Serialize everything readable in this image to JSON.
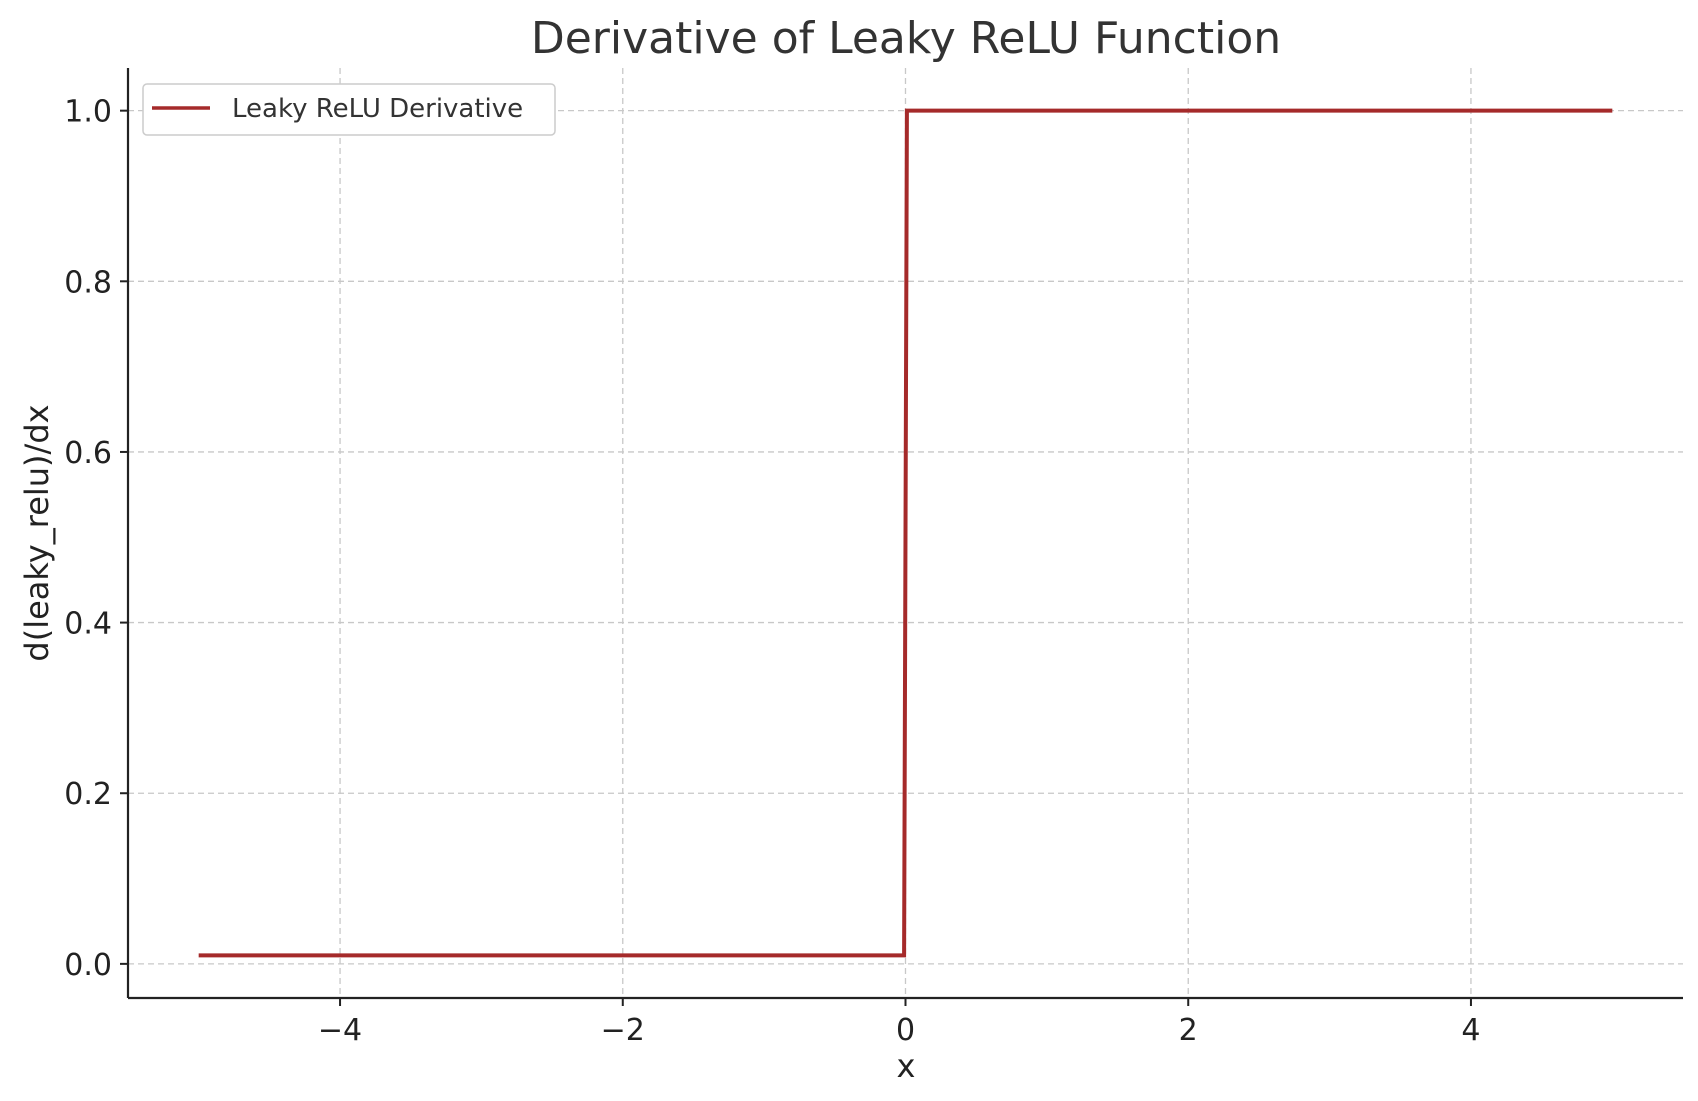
{
  "chart_data": {
    "type": "line",
    "title": "Derivative of Leaky ReLU Function",
    "xlabel": "x",
    "ylabel": "d(leaky_relu)/dx",
    "xlim": [
      -5.5,
      5.5
    ],
    "ylim": [
      -0.04,
      1.05
    ],
    "xticks": [
      -4,
      -2,
      0,
      2,
      4
    ],
    "xtick_labels": [
      "−4",
      "−2",
      "0",
      "2",
      "4"
    ],
    "yticks": [
      0.0,
      0.2,
      0.4,
      0.6,
      0.8,
      1.0
    ],
    "ytick_labels": [
      "0.0",
      "0.2",
      "0.4",
      "0.6",
      "0.8",
      "1.0"
    ],
    "grid": true,
    "legend_position": "top-left",
    "series": [
      {
        "name": "Leaky ReLU Derivative",
        "color": "#a52a2a",
        "x": [
          -5,
          -0.01,
          0.01,
          5
        ],
        "y": [
          0.01,
          0.01,
          1.0,
          1.0
        ]
      }
    ]
  }
}
